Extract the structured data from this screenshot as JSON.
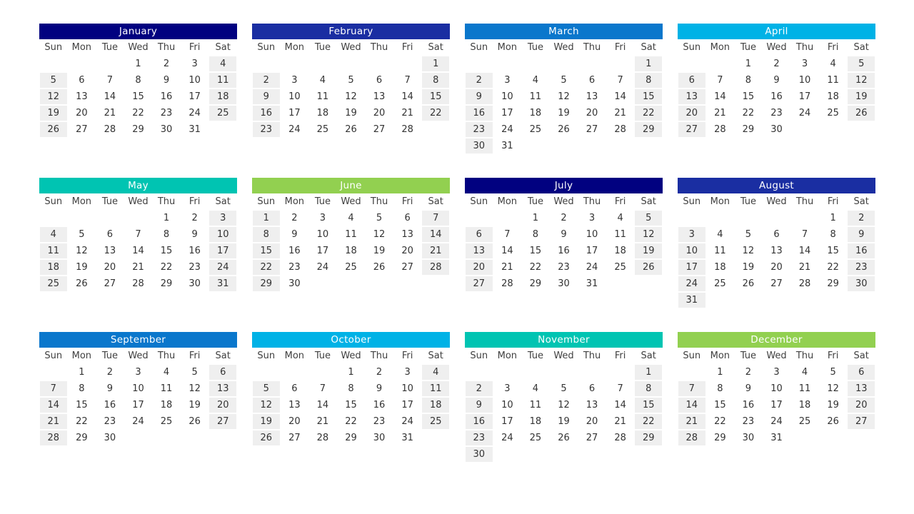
{
  "weekdays": [
    "Sun",
    "Mon",
    "Tue",
    "Wed",
    "Thu",
    "Fri",
    "Sat"
  ],
  "months": [
    {
      "name": "January",
      "first_weekday": 3,
      "days": 31,
      "color": "#010180"
    },
    {
      "name": "February",
      "first_weekday": 6,
      "days": 28,
      "color": "#1a2ea2"
    },
    {
      "name": "March",
      "first_weekday": 6,
      "days": 31,
      "color": "#0a77cc"
    },
    {
      "name": "April",
      "first_weekday": 2,
      "days": 30,
      "color": "#00b2e6"
    },
    {
      "name": "May",
      "first_weekday": 4,
      "days": 31,
      "color": "#00c4b2"
    },
    {
      "name": "June",
      "first_weekday": 0,
      "days": 30,
      "color": "#92d050"
    },
    {
      "name": "July",
      "first_weekday": 2,
      "days": 31,
      "color": "#010180"
    },
    {
      "name": "August",
      "first_weekday": 5,
      "days": 31,
      "color": "#1a2ea2"
    },
    {
      "name": "September",
      "first_weekday": 1,
      "days": 30,
      "color": "#0a77cc"
    },
    {
      "name": "October",
      "first_weekday": 3,
      "days": 31,
      "color": "#00b2e6"
    },
    {
      "name": "November",
      "first_weekday": 6,
      "days": 30,
      "color": "#00c4b2"
    },
    {
      "name": "December",
      "first_weekday": 1,
      "days": 31,
      "color": "#92d050"
    }
  ]
}
